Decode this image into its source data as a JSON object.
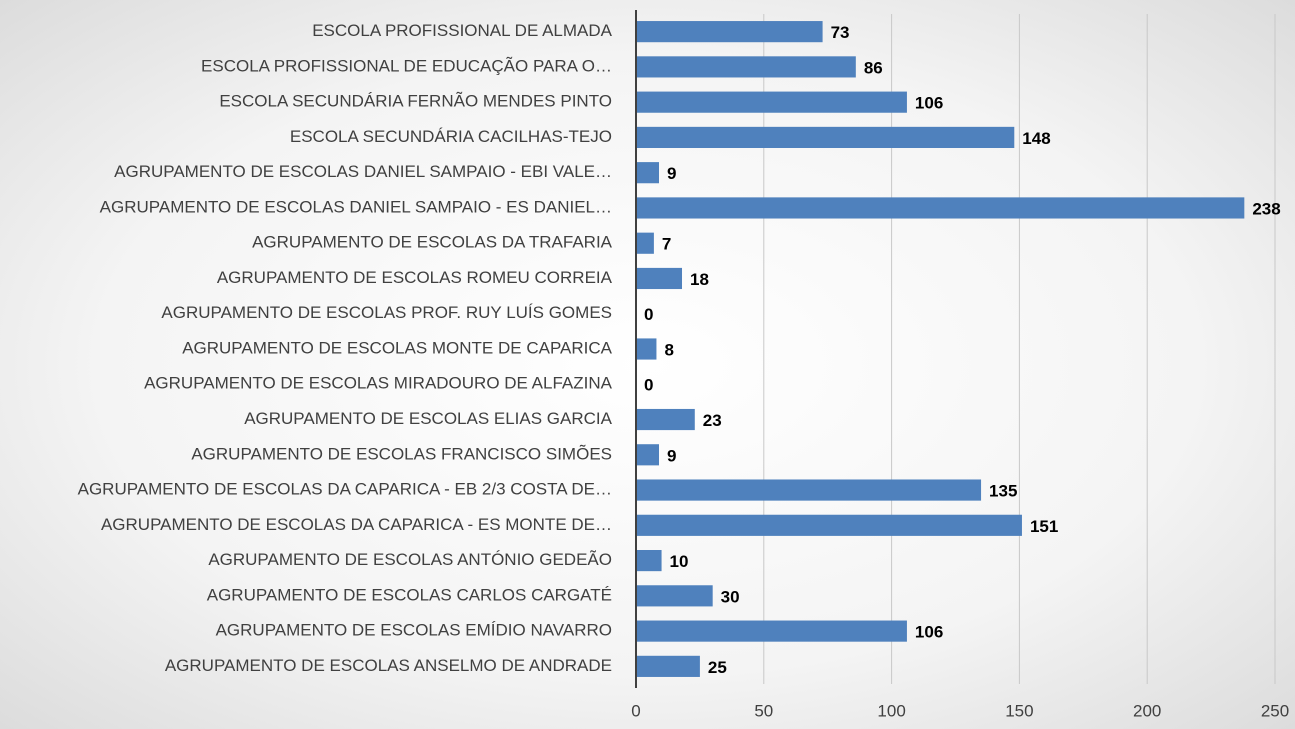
{
  "chart_data": {
    "type": "barh",
    "categories": [
      "ESCOLA PROFISSIONAL DE ALMADA",
      "ESCOLA PROFISSIONAL DE EDUCAÇÃO PARA O…",
      "ESCOLA SECUNDÁRIA FERNÃO MENDES PINTO",
      "ESCOLA SECUNDÁRIA CACILHAS-TEJO",
      "AGRUPAMENTO DE ESCOLAS DANIEL SAMPAIO - EBI VALE…",
      "AGRUPAMENTO DE ESCOLAS DANIEL SAMPAIO - ES DANIEL…",
      "AGRUPAMENTO DE ESCOLAS DA TRAFARIA",
      "AGRUPAMENTO DE ESCOLAS ROMEU CORREIA",
      "AGRUPAMENTO DE ESCOLAS PROF. RUY LUÍS GOMES",
      "AGRUPAMENTO DE ESCOLAS MONTE DE CAPARICA",
      "AGRUPAMENTO DE ESCOLAS MIRADOURO DE ALFAZINA",
      "AGRUPAMENTO DE ESCOLAS ELIAS GARCIA",
      "AGRUPAMENTO DE ESCOLAS FRANCISCO SIMÕES",
      "AGRUPAMENTO DE ESCOLAS DA CAPARICA - EB 2/3 COSTA DE…",
      "AGRUPAMENTO DE ESCOLAS DA CAPARICA - ES MONTE DE…",
      "AGRUPAMENTO DE ESCOLAS ANTÓNIO GEDEÃO",
      "AGRUPAMENTO DE ESCOLAS CARLOS CARGATÉ",
      "AGRUPAMENTO DE ESCOLAS  EMÍDIO NAVARRO",
      "AGRUPAMENTO DE ESCOLAS ANSELMO DE ANDRADE"
    ],
    "values": [
      73,
      86,
      106,
      148,
      9,
      238,
      7,
      18,
      0,
      8,
      0,
      23,
      9,
      135,
      151,
      10,
      30,
      106,
      25
    ],
    "color": "#4f81bd",
    "xlim": [
      0,
      250
    ],
    "xticks": [
      0,
      50,
      100,
      150,
      200,
      250
    ],
    "grid": true
  }
}
